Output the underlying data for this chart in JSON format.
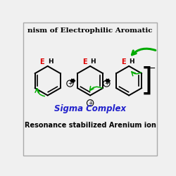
{
  "title_text": "nism of Electrophilic Aromatic",
  "sigma_label": "Sigma Complex",
  "resonance_label": "Resonance stabilized Arenium ion",
  "bg_color": "#f0f0f0",
  "border_color": "#aaaaaa",
  "black": "#000000",
  "red": "#dd0000",
  "blue": "#2222cc",
  "green": "#00aa00",
  "title_fontsize": 7.5,
  "sigma_fontsize": 8.5,
  "res_fontsize": 7.0
}
